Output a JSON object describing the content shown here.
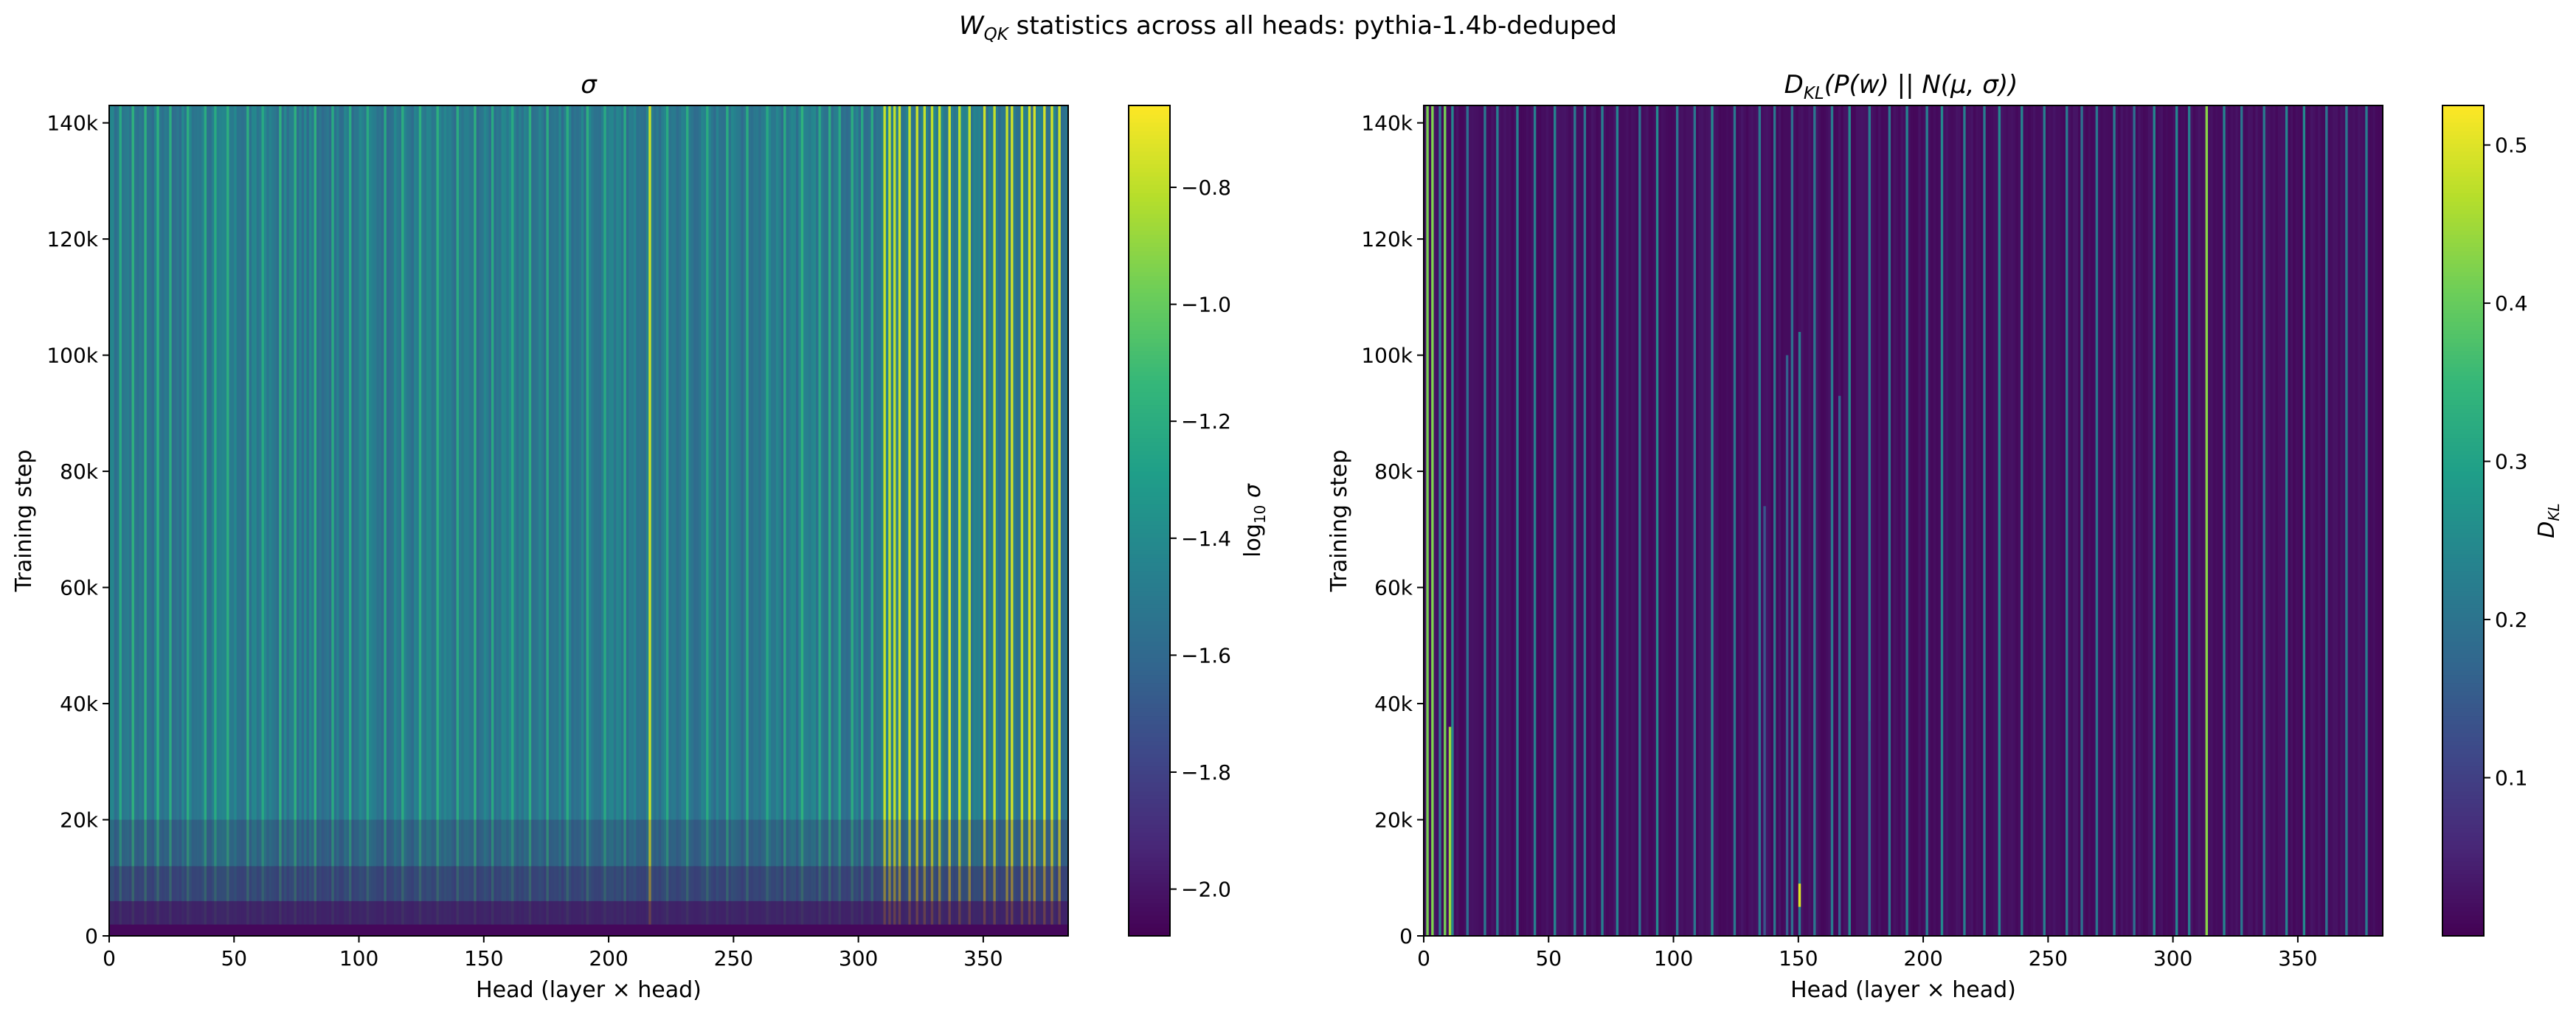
{
  "figure": {
    "suptitle_main": "W",
    "suptitle_sub": "QK",
    "suptitle_rest": " statistics across all heads: pythia-1.4b-deduped"
  },
  "colormap": {
    "name": "viridis",
    "stops": [
      "#440154",
      "#482878",
      "#3e4989",
      "#31688e",
      "#26828e",
      "#1f9e89",
      "#35b779",
      "#6ece58",
      "#b5de2b",
      "#fde725"
    ]
  },
  "chart_data": [
    {
      "type": "heatmap",
      "title": "σ",
      "xlabel": "Head (layer × head)",
      "ylabel": "Training step",
      "xlim": [
        0,
        384
      ],
      "ylim": [
        0,
        143000
      ],
      "x_ticks": [
        0,
        50,
        100,
        150,
        200,
        250,
        300,
        350
      ],
      "x_tick_labels": [
        "0",
        "50",
        "100",
        "150",
        "200",
        "250",
        "300",
        "350"
      ],
      "y_ticks": [
        0,
        20000,
        40000,
        60000,
        80000,
        100000,
        120000,
        140000
      ],
      "y_tick_labels": [
        "0",
        "20k",
        "40k",
        "60k",
        "80k",
        "100k",
        "120k",
        "140k"
      ],
      "colorbar": {
        "label_prefix": "log",
        "label_sub": "10",
        "label_suffix": " σ",
        "range": [
          -2.08,
          -0.66
        ],
        "ticks": [
          -2.0,
          -1.8,
          -1.6,
          -1.4,
          -1.2,
          -1.0,
          -0.8
        ],
        "tick_labels": [
          "−2.0",
          "−1.8",
          "−1.6",
          "−1.4",
          "−1.2",
          "−1.0",
          "−0.8"
        ]
      },
      "heads": 384,
      "typical_value": -1.5,
      "early_value": -2.05,
      "bright_heads": [
        216,
        310,
        312,
        314,
        316,
        320,
        323,
        326,
        329,
        332,
        336,
        340,
        344,
        350,
        354,
        359,
        361,
        365,
        368,
        370,
        374,
        377,
        380
      ],
      "bright_heads_value": -0.78,
      "medium_heads": [
        4,
        9,
        14,
        19,
        24,
        31,
        38,
        42,
        47,
        55,
        61,
        68,
        74,
        82,
        89,
        96,
        103,
        110,
        117,
        124,
        131,
        139,
        146,
        153,
        161,
        168,
        175,
        183,
        191,
        198,
        206,
        223,
        231,
        239,
        247,
        255,
        263,
        270,
        277,
        284,
        288,
        292,
        297,
        301,
        305
      ],
      "medium_heads_value": -1.2
    },
    {
      "type": "heatmap",
      "title_main": "D",
      "title_sub": "KL",
      "title_rest": "(P(w) || N(μ, σ))",
      "xlabel": "Head (layer × head)",
      "ylabel": "Training step",
      "xlim": [
        0,
        384
      ],
      "ylim": [
        0,
        143000
      ],
      "x_ticks": [
        0,
        50,
        100,
        150,
        200,
        250,
        300,
        350
      ],
      "x_tick_labels": [
        "0",
        "50",
        "100",
        "150",
        "200",
        "250",
        "300",
        "350"
      ],
      "y_ticks": [
        0,
        20000,
        40000,
        60000,
        80000,
        100000,
        120000,
        140000
      ],
      "y_tick_labels": [
        "0",
        "20k",
        "40k",
        "60k",
        "80k",
        "100k",
        "120k",
        "140k"
      ],
      "colorbar": {
        "label_main": "D",
        "label_sub": "KL",
        "range": [
          0.0,
          0.525
        ],
        "ticks": [
          0.1,
          0.2,
          0.3,
          0.4,
          0.5
        ],
        "tick_labels": [
          "0.1",
          "0.2",
          "0.3",
          "0.4",
          "0.5"
        ]
      },
      "heads": 384,
      "typical_value": 0.01,
      "bright_heads": [
        1,
        3,
        8,
        313
      ],
      "bright_heads_value": 0.42,
      "medium_heads": [
        6,
        11,
        17,
        24,
        29,
        37,
        44,
        52,
        60,
        64,
        71,
        77,
        86,
        93,
        101,
        108,
        115,
        124,
        134,
        140,
        147,
        156,
        163,
        170,
        178,
        186,
        193,
        201,
        207,
        216,
        224,
        230,
        239,
        248,
        257,
        263,
        269,
        276,
        284,
        292,
        301,
        306,
        320,
        327,
        336,
        345,
        352,
        361,
        369,
        377
      ],
      "medium_heads_value": 0.22,
      "partial_streaks": [
        {
          "head": 10,
          "from": 0,
          "to": 36000,
          "value": 0.45
        },
        {
          "head": 150,
          "from": 0,
          "to": 104000,
          "value": 0.22
        },
        {
          "head": 150,
          "from": 5000,
          "to": 9000,
          "value": 0.5
        },
        {
          "head": 145,
          "from": 0,
          "to": 100000,
          "value": 0.16
        },
        {
          "head": 136,
          "from": 0,
          "to": 74000,
          "value": 0.14
        },
        {
          "head": 166,
          "from": 0,
          "to": 93000,
          "value": 0.17
        },
        {
          "head": 178,
          "from": 0,
          "to": 37000,
          "value": 0.18
        }
      ]
    }
  ]
}
